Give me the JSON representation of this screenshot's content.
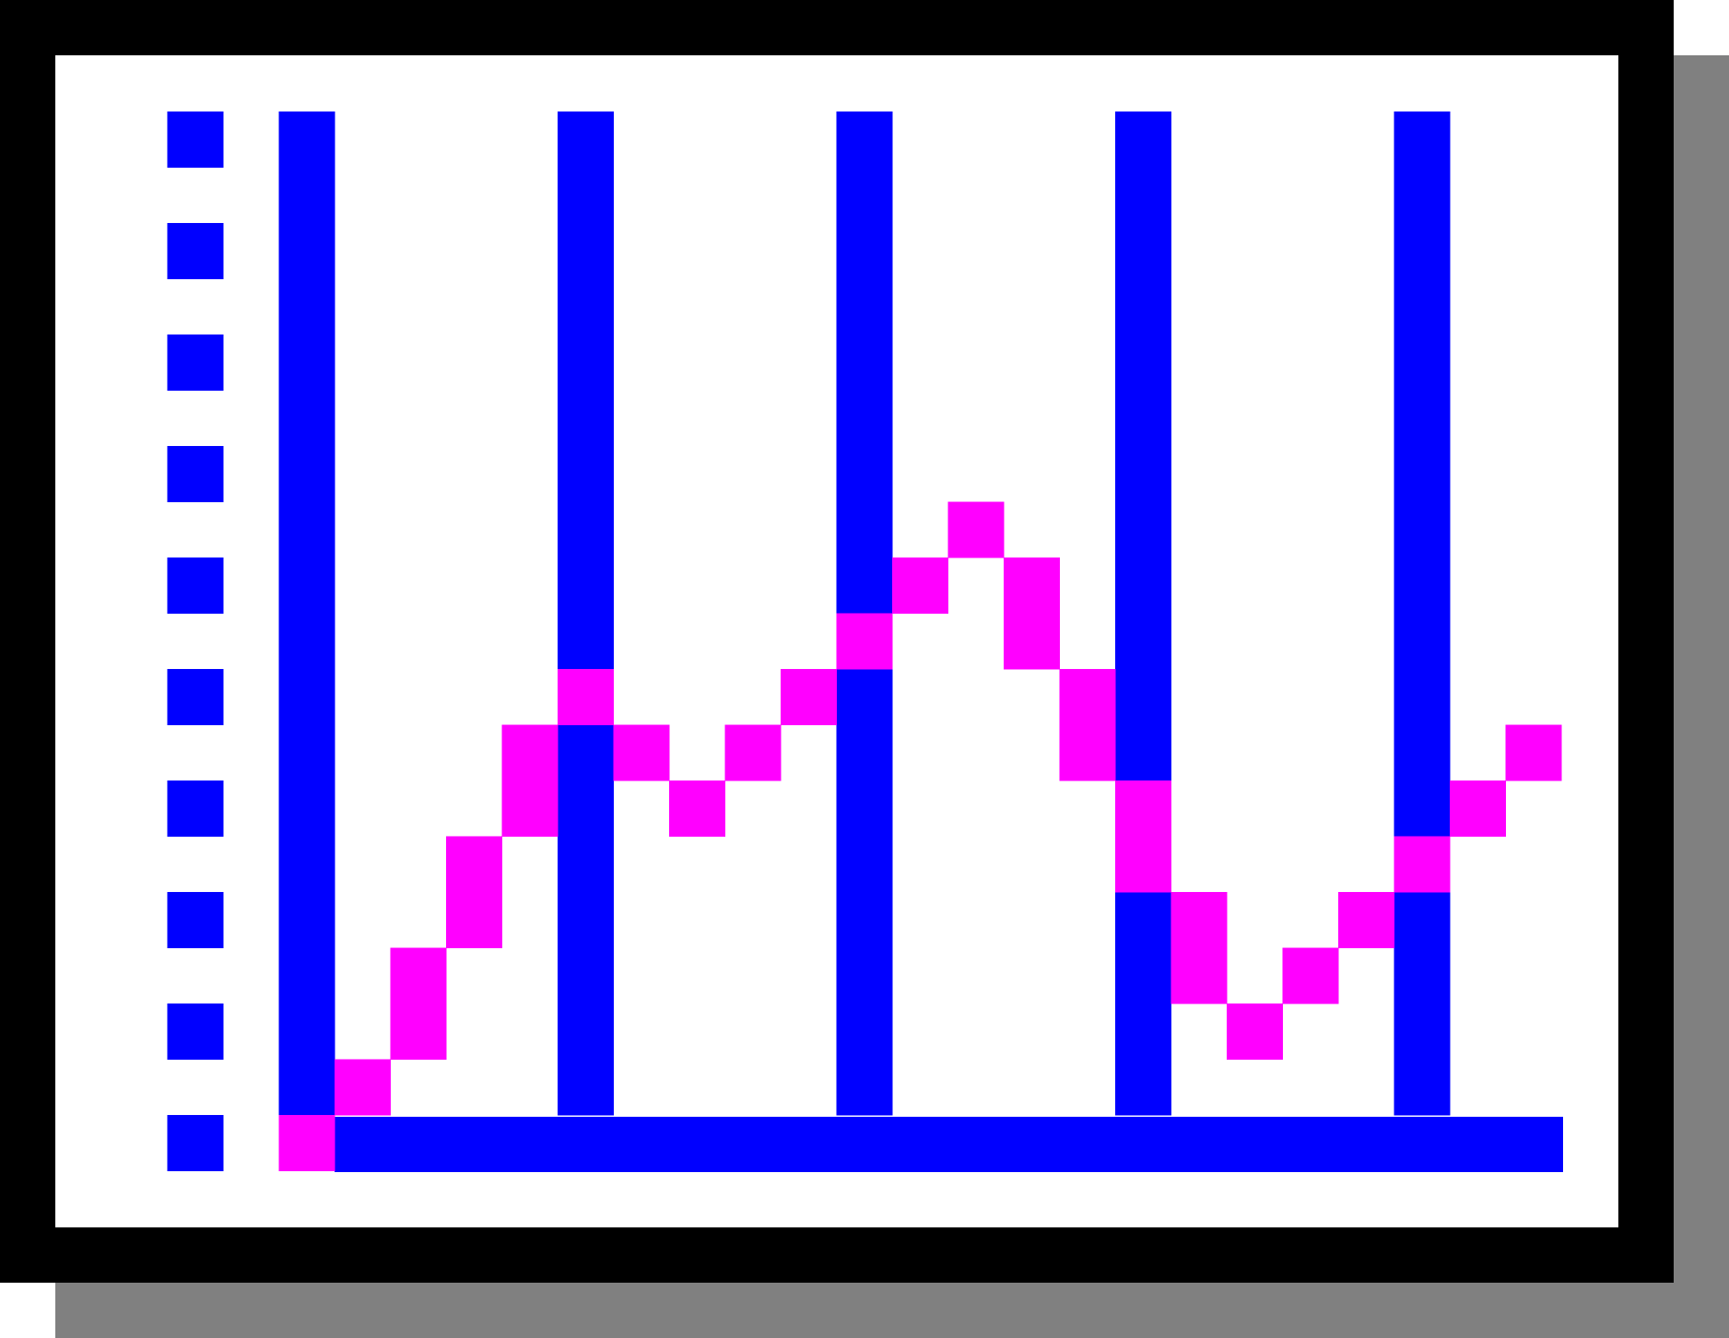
{
  "icon": {
    "name": "line-chart-icon",
    "style": "pixel-art",
    "colors": {
      "border": "#000000",
      "shadow": "#808080",
      "background": "#ffffff",
      "axis_and_grid": "#0000ff",
      "series_line": "#ff00ff"
    }
  }
}
